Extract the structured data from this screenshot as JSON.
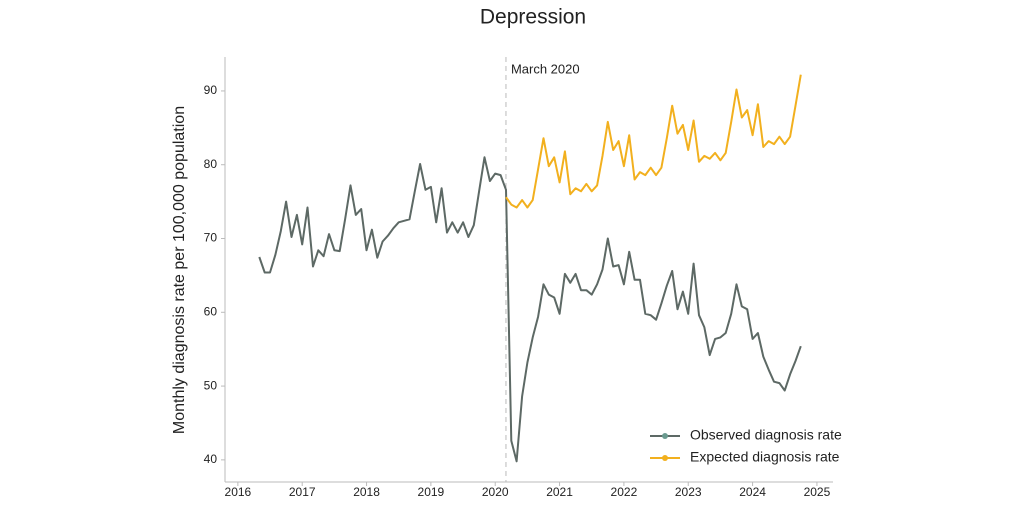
{
  "chart_data": {
    "type": "line",
    "title": "Depression",
    "y_label": "Monthly diagnosis rate per 100,000 population",
    "x": [
      2016.333,
      2016.417,
      2016.5,
      2016.583,
      2016.667,
      2016.75,
      2016.833,
      2016.917,
      2017,
      2017.083,
      2017.167,
      2017.25,
      2017.333,
      2017.417,
      2017.5,
      2017.583,
      2017.667,
      2017.75,
      2017.833,
      2017.917,
      2018,
      2018.083,
      2018.167,
      2018.25,
      2018.333,
      2018.417,
      2018.5,
      2018.583,
      2018.667,
      2018.75,
      2018.833,
      2018.917,
      2019,
      2019.083,
      2019.167,
      2019.25,
      2019.333,
      2019.417,
      2019.5,
      2019.583,
      2019.667,
      2019.75,
      2019.833,
      2019.917,
      2020,
      2020.083,
      2020.167,
      2020.25,
      2020.333,
      2020.417,
      2020.5,
      2020.583,
      2020.667,
      2020.75,
      2020.833,
      2020.917,
      2021,
      2021.083,
      2021.167,
      2021.25,
      2021.333,
      2021.417,
      2021.5,
      2021.583,
      2021.667,
      2021.75,
      2021.833,
      2021.917,
      2022,
      2022.083,
      2022.167,
      2022.25,
      2022.333,
      2022.417,
      2022.5,
      2022.583,
      2022.667,
      2022.75,
      2022.833,
      2022.917,
      2023,
      2023.083,
      2023.167,
      2023.25,
      2023.333,
      2023.417,
      2023.5,
      2023.583,
      2023.667,
      2023.75,
      2023.833,
      2023.917,
      2024,
      2024.083,
      2024.167,
      2024.25,
      2024.333,
      2024.417,
      2024.5,
      2024.583,
      2024.667,
      2024.75
    ],
    "series": [
      {
        "name": "Observed diagnosis rate",
        "color": "#5d6965",
        "marker_color": "#6a9a8f",
        "values": [
          67.5,
          65.4,
          65.4,
          67.8,
          71,
          75,
          70.2,
          73.2,
          69.2,
          74.2,
          66.2,
          68.4,
          67.6,
          70.6,
          68.4,
          68.3,
          72.6,
          77.2,
          73.2,
          74,
          68.4,
          71.2,
          67.4,
          69.6,
          70.4,
          71.4,
          72.2,
          72.4,
          72.6,
          76.4,
          80.1,
          76.6,
          77,
          72.2,
          76.8,
          70.8,
          72.2,
          70.8,
          72.2,
          70.2,
          71.8,
          76.4,
          81,
          77.8,
          78.8,
          78.6,
          76.6,
          42.6,
          39.8,
          48.6,
          53.2,
          56.6,
          59.4,
          63.8,
          62.4,
          62,
          59.8,
          65.2,
          64,
          65.2,
          63,
          63,
          62.4,
          63.8,
          65.8,
          70,
          66.2,
          66.4,
          63.8,
          68.2,
          64.4,
          64.4,
          59.8,
          59.6,
          59,
          61.2,
          63.6,
          65.6,
          60.4,
          62.8,
          59.8,
          66.6,
          59.6,
          58,
          54.2,
          56.4,
          56.6,
          57.2,
          59.8,
          63.8,
          60.8,
          60.4,
          56.4,
          57.2,
          54,
          52.2,
          50.6,
          50.4,
          49.4,
          51.6,
          53.4,
          55.4
        ]
      },
      {
        "name": "Expected diagnosis rate",
        "color": "#f2b01e",
        "marker_color": "#f2b01e",
        "values": [
          null,
          null,
          null,
          null,
          null,
          null,
          null,
          null,
          null,
          null,
          null,
          null,
          null,
          null,
          null,
          null,
          null,
          null,
          null,
          null,
          null,
          null,
          null,
          null,
          null,
          null,
          null,
          null,
          null,
          null,
          null,
          null,
          null,
          null,
          null,
          null,
          null,
          null,
          null,
          null,
          null,
          null,
          null,
          null,
          null,
          null,
          75.6,
          74.6,
          74.2,
          75.2,
          74.2,
          75.2,
          79.4,
          83.6,
          79.8,
          81,
          77.6,
          81.8,
          76,
          76.8,
          76.4,
          77.4,
          76.4,
          77.2,
          81.2,
          85.8,
          82,
          83.2,
          79.8,
          84,
          78,
          79,
          78.6,
          79.6,
          78.6,
          79.6,
          83.6,
          88,
          84.2,
          85.4,
          82,
          86,
          80.4,
          81.2,
          80.8,
          81.6,
          80.6,
          81.6,
          85.8,
          90.2,
          86.4,
          87.4,
          84,
          88.2,
          82.4,
          83.2,
          82.8,
          83.8,
          82.8,
          83.8,
          88,
          92.2
        ]
      }
    ],
    "annotation": {
      "x": 2020.167,
      "label": "March 2020"
    },
    "xlim": [
      2015.8,
      2025.25
    ],
    "xticks": [
      2016,
      2017,
      2018,
      2019,
      2020,
      2021,
      2022,
      2023,
      2024,
      2025
    ],
    "ylim": [
      37,
      94.6
    ],
    "yticks": [
      40,
      50,
      60,
      70,
      80,
      90
    ],
    "legend": "lower right"
  }
}
